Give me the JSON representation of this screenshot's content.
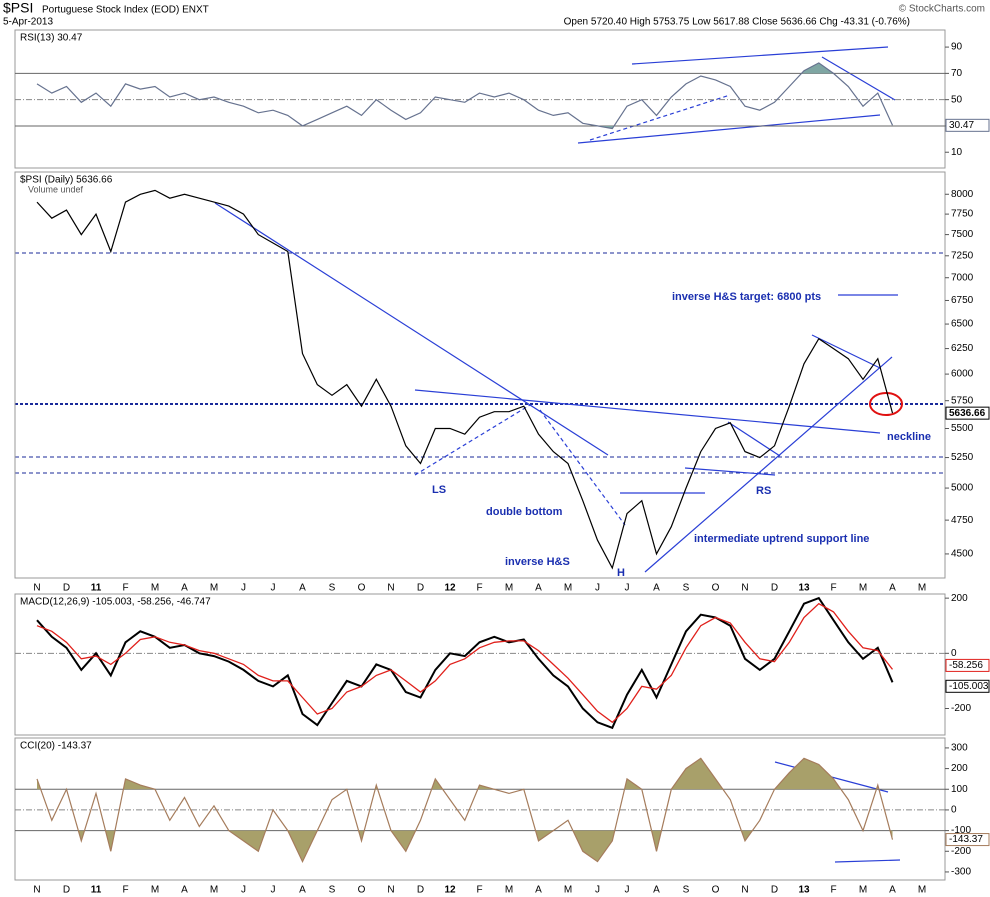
{
  "header": {
    "symbol": "$PSI",
    "name": "Portuguese Stock Index (EOD) ENXT",
    "date": "5-Apr-2013",
    "quote": "Open 5720.40 High 5753.75 Low 5617.88 Close 5636.66 Chg -43.31 (-0.76%)",
    "credit": "© StockCharts.com"
  },
  "annotations": {
    "target": "inverse H&S target: 6800 pts",
    "neckline": "neckline",
    "ls": "LS",
    "double_bottom": "double bottom",
    "inverse_hs": "inverse  H&S",
    "h": "H",
    "rs": "RS",
    "uptrend": "intermediate uptrend support line"
  },
  "chart_data": [
    {
      "type": "line",
      "title": "RSI(13) 30.47",
      "color": "#66728f",
      "fill_color": "#7fa6a3",
      "ylim": [
        -2,
        103
      ],
      "yticks": [
        10,
        30,
        50,
        70,
        90
      ],
      "ref_lines": [
        30,
        50,
        70
      ],
      "last_label": "30.47",
      "values": [
        62,
        55,
        60,
        48,
        55,
        45,
        62,
        58,
        60,
        52,
        55,
        50,
        52,
        48,
        45,
        40,
        42,
        38,
        30,
        35,
        40,
        45,
        38,
        50,
        42,
        35,
        40,
        52,
        50,
        48,
        55,
        52,
        55,
        50,
        42,
        38,
        40,
        32,
        30,
        28,
        45,
        50,
        38,
        52,
        62,
        68,
        65,
        60,
        45,
        42,
        48,
        60,
        72,
        78,
        70,
        60,
        45,
        55,
        30.47,
        null,
        null,
        null
      ]
    },
    {
      "type": "line",
      "log": true,
      "title": "$PSI (Daily) 5636.66",
      "legend": "Volume undef",
      "color": "#000000",
      "ylim": [
        4330,
        8290
      ],
      "yticks": [
        4500,
        4750,
        5000,
        5250,
        5500,
        5750,
        6000,
        6250,
        6500,
        6750,
        7000,
        7250,
        7500,
        7750,
        8000
      ],
      "last_label": "5636.66",
      "categories": [
        "N",
        null,
        "D",
        null,
        "11",
        null,
        "F",
        null,
        "M",
        null,
        "A",
        null,
        "M",
        null,
        "J",
        null,
        "J",
        null,
        "A",
        null,
        "S",
        null,
        "O",
        null,
        "N",
        null,
        "D",
        null,
        "12",
        null,
        "F",
        null,
        "M",
        null,
        "A",
        null,
        "M",
        null,
        "J",
        null,
        "J",
        null,
        "A",
        null,
        "S",
        null,
        "O",
        null,
        "N",
        null,
        "D",
        null,
        "13",
        null,
        "F",
        null,
        "M",
        null,
        "A",
        null,
        "M",
        null
      ],
      "values": [
        7900,
        7700,
        7800,
        7500,
        7750,
        7300,
        7900,
        8000,
        8050,
        7950,
        8000,
        7950,
        7900,
        7850,
        7750,
        7500,
        7400,
        7300,
        6200,
        5900,
        5800,
        5900,
        5700,
        5950,
        5700,
        5350,
        5200,
        5500,
        5500,
        5450,
        5600,
        5650,
        5650,
        5700,
        5450,
        5300,
        5200,
        4900,
        4600,
        4400,
        4800,
        4900,
        4500,
        4700,
        5000,
        5300,
        5500,
        5550,
        5300,
        5250,
        5350,
        5700,
        6100,
        6350,
        6250,
        6150,
        5950,
        6150,
        5636.66,
        null,
        null,
        null
      ]
    },
    {
      "type": "line",
      "title": "MACD(12,26,9) -105.003, -58.256, -46.747",
      "ylim": [
        -296,
        215
      ],
      "yticks": [
        -200,
        0,
        200
      ],
      "ref_lines": [
        0
      ],
      "series": [
        {
          "color": "#000000",
          "last_label": "-105.003",
          "values": [
            120,
            60,
            20,
            -60,
            0,
            -80,
            40,
            80,
            60,
            20,
            30,
            0,
            -10,
            -30,
            -60,
            -100,
            -120,
            -80,
            -220,
            -260,
            -180,
            -100,
            -120,
            -40,
            -60,
            -140,
            -160,
            -60,
            0,
            -10,
            40,
            60,
            40,
            50,
            -20,
            -80,
            -120,
            -200,
            -250,
            -270,
            -150,
            -60,
            -160,
            -40,
            80,
            140,
            130,
            100,
            -20,
            -60,
            -20,
            80,
            180,
            200,
            120,
            40,
            -20,
            20,
            -105.003,
            null,
            null,
            null
          ]
        },
        {
          "color": "#e0201b",
          "last_label": "-58.256",
          "values": [
            100,
            80,
            40,
            -20,
            -10,
            -40,
            0,
            50,
            60,
            40,
            30,
            10,
            0,
            -20,
            -40,
            -80,
            -100,
            -100,
            -160,
            -220,
            -200,
            -140,
            -120,
            -80,
            -60,
            -100,
            -140,
            -100,
            -40,
            -20,
            20,
            40,
            45,
            45,
            10,
            -40,
            -90,
            -150,
            -210,
            -250,
            -200,
            -120,
            -130,
            -80,
            20,
            100,
            130,
            110,
            40,
            -20,
            -30,
            40,
            130,
            180,
            150,
            80,
            20,
            10,
            -58.256,
            null,
            null,
            null
          ]
        }
      ]
    },
    {
      "type": "line",
      "title": "CCI(20) -143.37",
      "color": "#a57c5c",
      "fill_color": "#a8a06a",
      "ylim": [
        -339,
        348
      ],
      "yticks": [
        -300,
        -200,
        -100,
        0,
        100,
        200,
        300
      ],
      "ref_lines": [
        -100,
        0,
        100
      ],
      "last_label": "-143.37",
      "categories": [
        "N",
        null,
        "D",
        null,
        "11",
        null,
        "F",
        null,
        "M",
        null,
        "A",
        null,
        "M",
        null,
        "J",
        null,
        "J",
        null,
        "A",
        null,
        "S",
        null,
        "O",
        null,
        "N",
        null,
        "D",
        null,
        "12",
        null,
        "F",
        null,
        "M",
        null,
        "A",
        null,
        "M",
        null,
        "J",
        null,
        "J",
        null,
        "A",
        null,
        "S",
        null,
        "O",
        null,
        "N",
        null,
        "D",
        null,
        "13",
        null,
        "F",
        null,
        "M",
        null,
        "A",
        null,
        "M",
        null
      ],
      "values": [
        150,
        -50,
        100,
        -150,
        80,
        -200,
        150,
        120,
        100,
        -50,
        60,
        -80,
        20,
        -100,
        -150,
        -200,
        0,
        -100,
        -250,
        -100,
        50,
        100,
        -150,
        120,
        -100,
        -200,
        -50,
        150,
        50,
        -50,
        120,
        100,
        80,
        100,
        -150,
        -100,
        -50,
        -200,
        -250,
        -150,
        150,
        100,
        -200,
        100,
        200,
        250,
        150,
        50,
        -150,
        -50,
        100,
        180,
        250,
        220,
        150,
        50,
        -100,
        120,
        -143.37,
        null,
        null,
        null
      ]
    }
  ]
}
